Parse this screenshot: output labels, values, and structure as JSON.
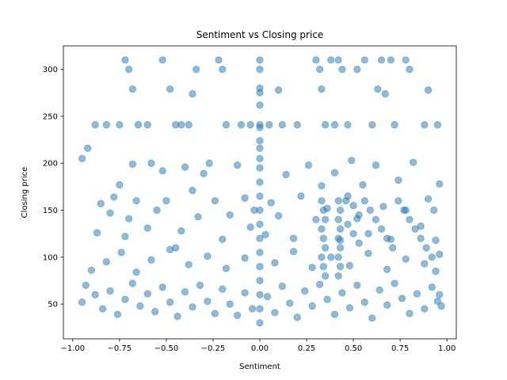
{
  "chart_data": {
    "type": "scatter",
    "title": "Sentiment vs Closing price",
    "xlabel": "Sentiment",
    "ylabel": "Closing price",
    "xlim": [
      -1.05,
      1.05
    ],
    "ylim": [
      13,
      325
    ],
    "xticks": [
      -1.0,
      -0.75,
      -0.5,
      -0.25,
      0.0,
      0.25,
      0.5,
      0.75,
      1.0
    ],
    "xtick_labels": [
      "−1.00",
      "−0.75",
      "−0.50",
      "−0.25",
      "0.00",
      "0.25",
      "0.50",
      "0.75",
      "1.00"
    ],
    "yticks": [
      50,
      100,
      150,
      200,
      250,
      300
    ],
    "ytick_labels": [
      "50",
      "100",
      "150",
      "200",
      "250",
      "300"
    ],
    "grid": false,
    "legend": "none",
    "marker_color": "#1f77b4",
    "marker_alpha": 0.5,
    "points": [
      [
        -0.95,
        205
      ],
      [
        -0.92,
        216
      ],
      [
        -0.88,
        241
      ],
      [
        -0.82,
        241
      ],
      [
        -0.75,
        241
      ],
      [
        -0.72,
        310
      ],
      [
        -0.7,
        300
      ],
      [
        -0.68,
        279
      ],
      [
        -0.65,
        241
      ],
      [
        -0.6,
        241
      ],
      [
        -0.52,
        310
      ],
      [
        -0.48,
        279
      ],
      [
        -0.45,
        241
      ],
      [
        -0.42,
        241
      ],
      [
        -0.38,
        241
      ],
      [
        -0.36,
        274
      ],
      [
        -0.34,
        300
      ],
      [
        -0.22,
        310
      ],
      [
        -0.2,
        300
      ],
      [
        -0.18,
        241
      ],
      [
        -0.1,
        241
      ],
      [
        -0.05,
        241
      ],
      [
        0.05,
        241
      ],
      [
        0.1,
        278
      ],
      [
        0.12,
        241
      ],
      [
        0.2,
        241
      ],
      [
        0.3,
        310
      ],
      [
        0.32,
        300
      ],
      [
        0.33,
        279
      ],
      [
        0.35,
        241
      ],
      [
        0.38,
        310
      ],
      [
        0.4,
        241
      ],
      [
        0.42,
        310
      ],
      [
        0.44,
        300
      ],
      [
        0.47,
        241
      ],
      [
        0.52,
        300
      ],
      [
        0.56,
        310
      ],
      [
        0.6,
        241
      ],
      [
        0.63,
        279
      ],
      [
        0.65,
        310
      ],
      [
        0.67,
        274
      ],
      [
        0.7,
        310
      ],
      [
        0.72,
        241
      ],
      [
        0.78,
        310
      ],
      [
        0.8,
        300
      ],
      [
        0.88,
        241
      ],
      [
        0.9,
        278
      ],
      [
        0.95,
        241
      ],
      [
        0.96,
        178
      ],
      [
        0.93,
        150
      ],
      [
        -0.87,
        126
      ],
      [
        -0.85,
        157
      ],
      [
        -0.8,
        147
      ],
      [
        -0.78,
        164
      ],
      [
        -0.75,
        177
      ],
      [
        -0.72,
        122
      ],
      [
        -0.7,
        141
      ],
      [
        -0.68,
        199
      ],
      [
        -0.66,
        160
      ],
      [
        -0.6,
        131
      ],
      [
        -0.58,
        200
      ],
      [
        -0.55,
        150
      ],
      [
        -0.52,
        192
      ],
      [
        -0.5,
        160
      ],
      [
        -0.45,
        110
      ],
      [
        -0.42,
        128
      ],
      [
        -0.4,
        196
      ],
      [
        -0.36,
        171
      ],
      [
        -0.33,
        143
      ],
      [
        -0.3,
        189
      ],
      [
        -0.27,
        200
      ],
      [
        -0.24,
        160
      ],
      [
        -0.2,
        119
      ],
      [
        -0.16,
        145
      ],
      [
        -0.12,
        198
      ],
      [
        -0.08,
        163
      ],
      [
        -0.05,
        132
      ],
      [
        -0.03,
        150
      ],
      [
        0.03,
        124
      ],
      [
        0.06,
        158
      ],
      [
        0.1,
        144
      ],
      [
        0.14,
        188
      ],
      [
        0.18,
        120
      ],
      [
        0.22,
        165
      ],
      [
        0.26,
        198
      ],
      [
        0.3,
        140
      ],
      [
        0.33,
        176
      ],
      [
        0.36,
        152
      ],
      [
        0.4,
        190
      ],
      [
        0.43,
        118
      ],
      [
        0.46,
        160
      ],
      [
        0.49,
        203
      ],
      [
        0.52,
        141
      ],
      [
        0.55,
        177
      ],
      [
        0.58,
        125
      ],
      [
        0.62,
        198
      ],
      [
        0.66,
        154
      ],
      [
        0.7,
        119
      ],
      [
        0.74,
        182
      ],
      [
        0.78,
        150
      ],
      [
        0.82,
        201
      ],
      [
        0.86,
        133
      ],
      [
        0.9,
        162
      ],
      [
        0.94,
        118
      ],
      [
        0.96,
        103
      ],
      [
        -0.9,
        86
      ],
      [
        -0.82,
        95
      ],
      [
        -0.74,
        105
      ],
      [
        -0.66,
        84
      ],
      [
        -0.58,
        97
      ],
      [
        -0.48,
        108
      ],
      [
        -0.38,
        92
      ],
      [
        -0.28,
        101
      ],
      [
        -0.18,
        88
      ],
      [
        -0.08,
        99
      ],
      [
        0.08,
        94
      ],
      [
        0.18,
        106
      ],
      [
        0.28,
        89
      ],
      [
        0.38,
        100
      ],
      [
        0.48,
        91
      ],
      [
        0.58,
        104
      ],
      [
        0.68,
        87
      ],
      [
        0.78,
        98
      ],
      [
        0.88,
        93
      ],
      [
        0.94,
        85
      ],
      [
        -0.95,
        52
      ],
      [
        -0.93,
        70
      ],
      [
        -0.88,
        60
      ],
      [
        -0.84,
        45
      ],
      [
        -0.8,
        64
      ],
      [
        -0.76,
        39
      ],
      [
        -0.72,
        55
      ],
      [
        -0.68,
        72
      ],
      [
        -0.64,
        48
      ],
      [
        -0.6,
        61
      ],
      [
        -0.56,
        42
      ],
      [
        -0.52,
        68
      ],
      [
        -0.48,
        52
      ],
      [
        -0.44,
        37
      ],
      [
        -0.4,
        63
      ],
      [
        -0.36,
        47
      ],
      [
        -0.32,
        70
      ],
      [
        -0.28,
        53
      ],
      [
        -0.24,
        40
      ],
      [
        -0.2,
        66
      ],
      [
        -0.16,
        50
      ],
      [
        -0.12,
        38
      ],
      [
        -0.08,
        62
      ],
      [
        -0.04,
        45
      ],
      [
        0.04,
        58
      ],
      [
        0.08,
        41
      ],
      [
        0.12,
        69
      ],
      [
        0.16,
        51
      ],
      [
        0.2,
        36
      ],
      [
        0.24,
        64
      ],
      [
        0.28,
        48
      ],
      [
        0.32,
        71
      ],
      [
        0.36,
        55
      ],
      [
        0.4,
        39
      ],
      [
        0.44,
        62
      ],
      [
        0.48,
        46
      ],
      [
        0.52,
        70
      ],
      [
        0.56,
        52
      ],
      [
        0.6,
        35
      ],
      [
        0.64,
        65
      ],
      [
        0.68,
        49
      ],
      [
        0.72,
        72
      ],
      [
        0.76,
        56
      ],
      [
        0.8,
        40
      ],
      [
        0.84,
        61
      ],
      [
        0.88,
        45
      ],
      [
        0.92,
        68
      ],
      [
        0.95,
        53
      ],
      [
        0.96,
        60
      ],
      [
        0.97,
        48
      ],
      [
        0.0,
        310
      ],
      [
        0.0,
        300
      ],
      [
        0.0,
        280
      ],
      [
        0.0,
        275
      ],
      [
        0.0,
        262
      ],
      [
        0.0,
        241
      ],
      [
        0.0,
        238
      ],
      [
        0.0,
        224
      ],
      [
        0.0,
        216
      ],
      [
        0.0,
        205
      ],
      [
        0.0,
        195
      ],
      [
        0.0,
        180
      ],
      [
        0.0,
        165
      ],
      [
        0.0,
        150
      ],
      [
        0.0,
        135
      ],
      [
        0.0,
        120
      ],
      [
        0.0,
        105
      ],
      [
        0.0,
        90
      ],
      [
        0.0,
        75
      ],
      [
        0.0,
        60
      ],
      [
        0.0,
        45
      ],
      [
        0.0,
        30
      ],
      [
        0.33,
        160
      ],
      [
        0.34,
        150
      ],
      [
        0.35,
        140
      ],
      [
        0.33,
        130
      ],
      [
        0.34,
        120
      ],
      [
        0.35,
        110
      ],
      [
        0.33,
        100
      ],
      [
        0.34,
        90
      ],
      [
        0.35,
        80
      ],
      [
        0.42,
        160
      ],
      [
        0.43,
        150
      ],
      [
        0.42,
        140
      ],
      [
        0.43,
        130
      ],
      [
        0.42,
        120
      ],
      [
        0.43,
        110
      ],
      [
        0.42,
        100
      ],
      [
        0.43,
        90
      ],
      [
        0.42,
        80
      ],
      [
        0.47,
        165
      ],
      [
        0.5,
        155
      ],
      [
        0.53,
        145
      ],
      [
        0.47,
        135
      ],
      [
        0.5,
        125
      ],
      [
        0.53,
        115
      ],
      [
        0.56,
        160
      ],
      [
        0.59,
        150
      ],
      [
        0.62,
        140
      ],
      [
        0.65,
        130
      ],
      [
        0.68,
        120
      ],
      [
        0.71,
        110
      ],
      [
        0.74,
        160
      ],
      [
        0.77,
        150
      ],
      [
        0.8,
        140
      ],
      [
        0.83,
        130
      ],
      [
        0.86,
        120
      ],
      [
        0.89,
        110
      ],
      [
        0.92,
        100
      ]
    ]
  }
}
